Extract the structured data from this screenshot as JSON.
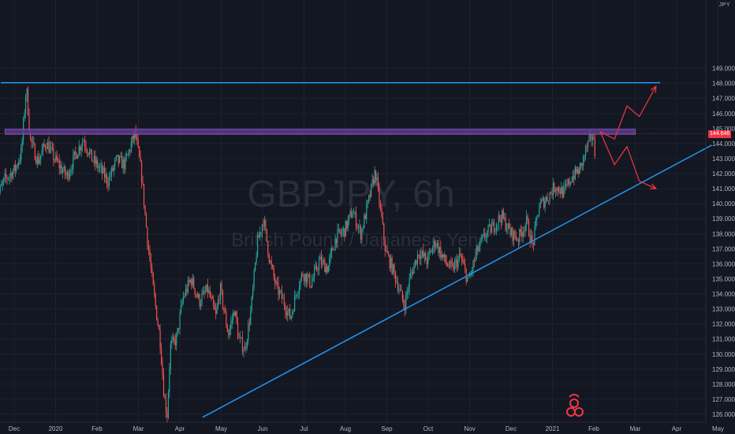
{
  "chart_data": {
    "type": "candlestick",
    "watermark": {
      "symbol": "GBPJPY, 6h",
      "name": "British Pound / Japanese Yen"
    },
    "currency_label": "JPY",
    "y_axis": {
      "ylim": [
        125.5,
        149.8
      ],
      "ticks": [
        "126.000",
        "127.000",
        "128.000",
        "129.000",
        "130.000",
        "131.000",
        "132.000",
        "133.000",
        "134.000",
        "135.000",
        "136.000",
        "137.000",
        "138.000",
        "139.000",
        "140.000",
        "141.000",
        "142.000",
        "143.000",
        "144.000",
        "145.000",
        "146.000",
        "147.000",
        "148.000",
        "149.000"
      ]
    },
    "x_axis": {
      "ticks": [
        {
          "label": "Dec",
          "t": 0
        },
        {
          "label": "2020",
          "t": 1
        },
        {
          "label": "Feb",
          "t": 2
        },
        {
          "label": "Mar",
          "t": 3
        },
        {
          "label": "Apr",
          "t": 4
        },
        {
          "label": "May",
          "t": 5
        },
        {
          "label": "Jun",
          "t": 6
        },
        {
          "label": "Jul",
          "t": 7
        },
        {
          "label": "Aug",
          "t": 8
        },
        {
          "label": "Sep",
          "t": 9
        },
        {
          "label": "Oct",
          "t": 10
        },
        {
          "label": "Nov",
          "t": 11
        },
        {
          "label": "Dec",
          "t": 12
        },
        {
          "label": "2021",
          "t": 13
        },
        {
          "label": "Feb",
          "t": 14
        },
        {
          "label": "Mar",
          "t": 15
        },
        {
          "label": "Apr",
          "t": 16
        },
        {
          "label": "May",
          "t": 17
        }
      ]
    },
    "current_price": {
      "value": 144.646,
      "label": "144.646",
      "color": "#f23645"
    },
    "price_path": [
      [
        -0.45,
        140.0
      ],
      [
        -0.2,
        141.6
      ],
      [
        0.05,
        142.3
      ],
      [
        0.2,
        143.4
      ],
      [
        0.32,
        147.8
      ],
      [
        0.42,
        144.2
      ],
      [
        0.6,
        142.8
      ],
      [
        0.8,
        144.1
      ],
      [
        1.0,
        143.0
      ],
      [
        1.3,
        141.8
      ],
      [
        1.5,
        143.2
      ],
      [
        1.7,
        144.3
      ],
      [
        1.9,
        143.0
      ],
      [
        2.1,
        142.3
      ],
      [
        2.3,
        141.5
      ],
      [
        2.5,
        142.9
      ],
      [
        2.7,
        142.6
      ],
      [
        2.85,
        143.9
      ],
      [
        2.95,
        144.7
      ],
      [
        3.1,
        142.0
      ],
      [
        3.25,
        137.5
      ],
      [
        3.4,
        134.0
      ],
      [
        3.55,
        131.0
      ],
      [
        3.65,
        127.2
      ],
      [
        3.72,
        125.9
      ],
      [
        3.8,
        130.5
      ],
      [
        3.95,
        131.0
      ],
      [
        4.1,
        133.7
      ],
      [
        4.3,
        135.0
      ],
      [
        4.5,
        133.5
      ],
      [
        4.7,
        134.3
      ],
      [
        4.9,
        132.5
      ],
      [
        5.0,
        134.4
      ],
      [
        5.2,
        131.3
      ],
      [
        5.35,
        133.0
      ],
      [
        5.45,
        131.0
      ],
      [
        5.6,
        130.3
      ],
      [
        5.75,
        133.0
      ],
      [
        5.9,
        137.4
      ],
      [
        6.05,
        139.0
      ],
      [
        6.2,
        136.2
      ],
      [
        6.35,
        134.5
      ],
      [
        6.5,
        133.7
      ],
      [
        6.7,
        132.4
      ],
      [
        6.85,
        134.2
      ],
      [
        7.0,
        135.4
      ],
      [
        7.2,
        134.7
      ],
      [
        7.4,
        136.2
      ],
      [
        7.6,
        135.7
      ],
      [
        7.8,
        137.8
      ],
      [
        8.0,
        138.2
      ],
      [
        8.2,
        139.5
      ],
      [
        8.4,
        138.0
      ],
      [
        8.6,
        140.3
      ],
      [
        8.75,
        142.2
      ],
      [
        8.9,
        139.0
      ],
      [
        9.0,
        136.8
      ],
      [
        9.15,
        135.8
      ],
      [
        9.3,
        134.6
      ],
      [
        9.45,
        133.2
      ],
      [
        9.6,
        135.2
      ],
      [
        9.8,
        136.8
      ],
      [
        10.0,
        136.2
      ],
      [
        10.2,
        137.5
      ],
      [
        10.4,
        136.3
      ],
      [
        10.6,
        135.6
      ],
      [
        10.8,
        136.5
      ],
      [
        11.0,
        134.8
      ],
      [
        11.2,
        136.8
      ],
      [
        11.4,
        137.9
      ],
      [
        11.6,
        138.5
      ],
      [
        11.8,
        139.2
      ],
      [
        12.0,
        138.1
      ],
      [
        12.2,
        137.7
      ],
      [
        12.4,
        138.8
      ],
      [
        12.55,
        137.2
      ],
      [
        12.7,
        139.8
      ],
      [
        12.9,
        140.4
      ],
      [
        13.1,
        141.2
      ],
      [
        13.3,
        140.7
      ],
      [
        13.5,
        141.8
      ],
      [
        13.7,
        142.3
      ],
      [
        13.85,
        143.7
      ],
      [
        14.0,
        144.6
      ],
      [
        14.05,
        143.4
      ]
    ],
    "annotations": [
      {
        "kind": "trendline",
        "color": "#2196f3",
        "points": [
          [
            -0.32,
            148.05
          ],
          [
            15.6,
            148.05
          ]
        ]
      },
      {
        "kind": "trendline",
        "color": "#2196f3",
        "points": [
          [
            4.55,
            125.8
          ],
          [
            16.85,
            143.9
          ]
        ]
      },
      {
        "kind": "zone",
        "fill": "#5c3a8c",
        "stroke": "#7e57c2",
        "x": [
          -0.22,
          15.0
        ],
        "y": [
          144.62,
          144.95
        ]
      },
      {
        "kind": "arrow",
        "color": "#f23645",
        "points": [
          [
            14.15,
            144.8
          ],
          [
            14.5,
            144.3
          ],
          [
            14.8,
            146.5
          ],
          [
            15.1,
            145.8
          ],
          [
            15.5,
            147.8
          ]
        ]
      },
      {
        "kind": "arrow",
        "color": "#f23645",
        "points": [
          [
            14.15,
            144.8
          ],
          [
            14.5,
            142.6
          ],
          [
            14.8,
            143.8
          ],
          [
            15.1,
            141.5
          ],
          [
            15.5,
            141.0
          ]
        ]
      }
    ]
  }
}
